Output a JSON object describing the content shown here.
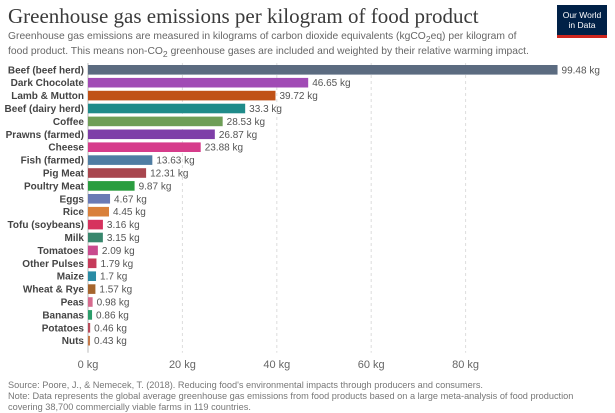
{
  "header": {
    "title": "Greenhouse gas emissions per kilogram of food product",
    "subtitle_pre": "Greenhouse gas emissions are measured in kilograms of carbon dioxide equivalents (kgCO",
    "subtitle_sub": "2",
    "subtitle_post": "eq) per kilogram of food product. This means non-CO",
    "subtitle_sub2": "2",
    "subtitle_end": " greenhouse gases are included and weighted by their relative warming impact."
  },
  "logo": {
    "line1": "Our World",
    "line2": "in Data",
    "bg_color": "#002147",
    "accent_color": "#ce261e"
  },
  "footer": {
    "source": "Source: Poore, J., & Nemecek, T. (2018). Reducing food's environmental impacts through producers and consumers.",
    "note": "Note: Data represents the global average greenhouse gas emissions from food products based on a large meta-analysis of food production covering 38,700 commercially viable farms in 119 countries."
  },
  "chart_data": {
    "type": "bar",
    "orientation": "horizontal",
    "unit_suffix": " kg",
    "xlim": [
      0,
      100
    ],
    "xticks": [
      0,
      20,
      40,
      60,
      80
    ],
    "xtick_labels": [
      "0 kg",
      "20 kg",
      "40 kg",
      "60 kg",
      "80 kg"
    ],
    "grid": true,
    "categories": [
      "Beef (beef herd)",
      "Dark Chocolate",
      "Lamb & Mutton",
      "Beef (dairy herd)",
      "Coffee",
      "Prawns (farmed)",
      "Cheese",
      "Fish (farmed)",
      "Pig Meat",
      "Poultry Meat",
      "Eggs",
      "Rice",
      "Tofu (soybeans)",
      "Milk",
      "Tomatoes",
      "Other Pulses",
      "Maize",
      "Wheat & Rye",
      "Peas",
      "Bananas",
      "Potatoes",
      "Nuts"
    ],
    "values": [
      99.48,
      46.65,
      39.72,
      33.3,
      28.53,
      26.87,
      23.88,
      13.63,
      12.31,
      9.87,
      4.67,
      4.45,
      3.16,
      3.15,
      2.09,
      1.79,
      1.7,
      1.57,
      0.98,
      0.86,
      0.46,
      0.43
    ],
    "value_labels": [
      "99.48 kg",
      "46.65 kg",
      "39.72 kg",
      "33.3 kg",
      "28.53 kg",
      "26.87 kg",
      "23.88 kg",
      "13.63 kg",
      "12.31 kg",
      "9.87 kg",
      "4.67 kg",
      "4.45 kg",
      "3.16 kg",
      "3.15 kg",
      "2.09 kg",
      "1.79 kg",
      "1.7 kg",
      "1.57 kg",
      "0.98 kg",
      "0.86 kg",
      "0.46 kg",
      "0.43 kg"
    ],
    "colors": [
      "#5b6b80",
      "#a14bb5",
      "#c05217",
      "#1f8b8a",
      "#6e9e57",
      "#7e3ea8",
      "#d63c8b",
      "#4f7da3",
      "#a8464e",
      "#2a9d3f",
      "#6a7ab5",
      "#d9803a",
      "#d6325e",
      "#38876d",
      "#c94a8e",
      "#c53a5a",
      "#2a8ca5",
      "#a5652d",
      "#d66a8e",
      "#2a9d6a",
      "#b94a5a",
      "#c47a4a"
    ]
  }
}
